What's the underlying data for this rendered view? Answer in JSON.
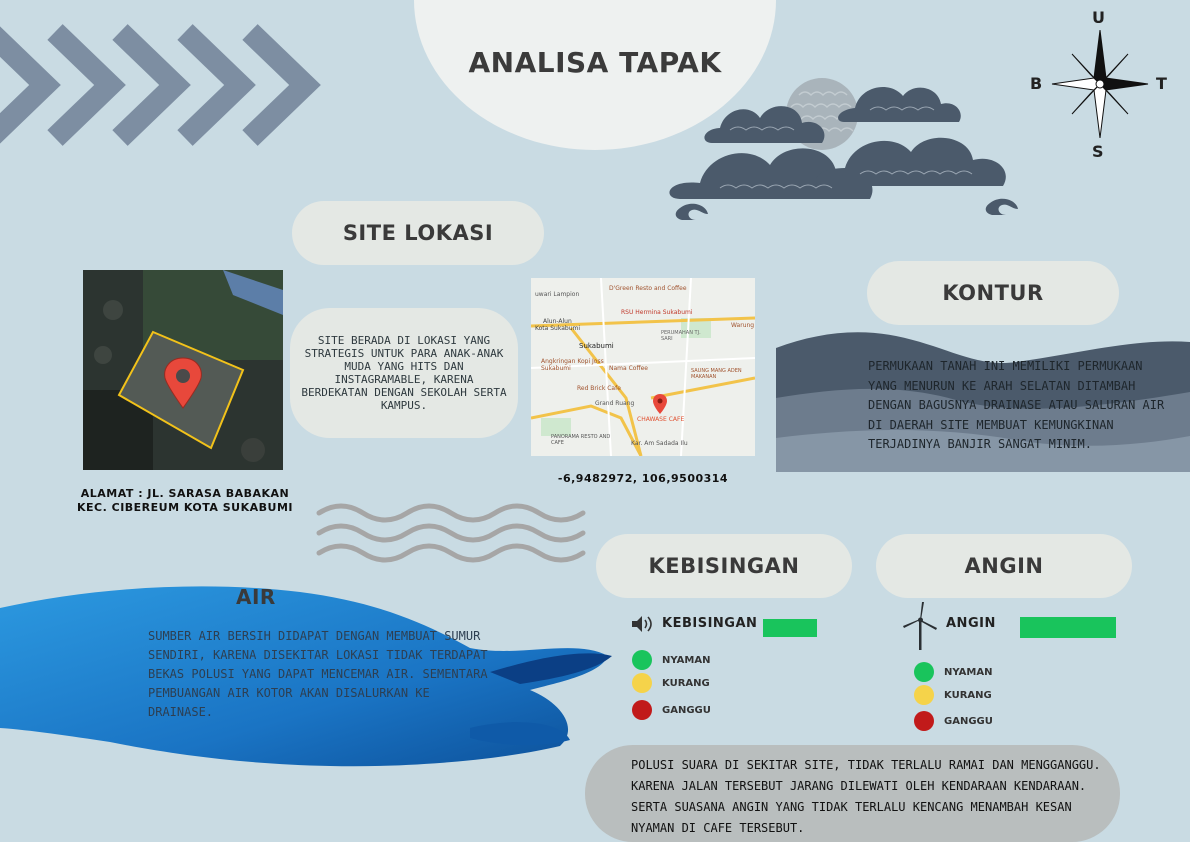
{
  "title": "ANALISA TAPAK",
  "compass": {
    "north": "U",
    "south": "S",
    "west": "B",
    "east": "T"
  },
  "site": {
    "heading": "SITE LOKASI",
    "description": "SITE BERADA DI LOKASI YANG STRATEGIS UNTUK PARA ANAK-ANAK MUDA YANG HITS DAN INSTAGRAMABLE, KARENA BERDEKATAN DENGAN SEKOLAH SERTA KAMPUS.",
    "address_line1": "ALAMAT : JL. SARASA BABAKAN",
    "address_line2": "KEC. CIBEREUM KOTA SUKABUMI",
    "coordinates": "-6,9482972, 106,9500314"
  },
  "map_labels": {
    "l1": "uwari Lampion",
    "l2": "D'Green Resto and Coffee",
    "l3": "RSU Hermina Sukabumi",
    "l4": "Alun-Alun",
    "l5": "Kota Sukabumi",
    "l6": "Sukabumi",
    "l7": "PERUMAHAN TJ. SARI",
    "l8": "Warung",
    "l9": "Angkringan Kopi Joss Sukabumi",
    "l10": "Nama Coffee",
    "l11": "SAUNG MANG ADEN MAKANAN",
    "l12": "Red Brick Cafe",
    "l13": "Grand Ruang",
    "l14": "CHAWASE CAFE",
    "l15": "PANORAMA RESTO AND CAFE",
    "l16": "Kar. Am Sadada Ilu"
  },
  "kontur": {
    "heading": "KONTUR",
    "text": "PERMUKAAN TANAH INI MEMILIKI PERMUKAAN YANG MENURUN KE ARAH SELATAN DITAMBAH DENGAN BAGUSNYA DRAINASE ATAU SALURAN AIR DI DAERAH SITE MEMBUAT KEMUNGKINAN TERJADINYA BANJIR SANGAT MINIM."
  },
  "air": {
    "heading": "AIR",
    "text": "SUMBER AIR BERSIH DIDAPAT DENGAN MEMBUAT SUMUR SENDIRI, KARENA DISEKITAR LOKASI TIDAK TERDAPAT BEKAS POLUSI YANG DAPAT MENCEMAR AIR. SEMENTARA PEMBUANGAN AIR KOTOR AKAN DISALURKAN KE DRAINASE."
  },
  "kebisingan": {
    "heading": "KEBISINGAN",
    "label": "KEBISINGAN",
    "legend": {
      "nyaman": "NYAMAN",
      "kurang": "KURANG",
      "ganggu": "GANGGU"
    },
    "text": "POLUSI SUARA DI SEKITAR SITE, TIDAK TERLALU RAMAI DAN MENGGANGGU. KARENA JALAN TERSEBUT JARANG DILEWATI OLEH KENDARAAN KENDARAAN. SERTA SUASANA ANGIN YANG TIDAK TERLALU KENCANG MENAMBAH KESAN NYAMAN DI CAFE TERSEBUT."
  },
  "angin": {
    "heading": "ANGIN",
    "label": "ANGIN",
    "legend": {
      "nyaman": "NYAMAN",
      "kurang": "KURANG",
      "ganggu": "GANGGU"
    }
  },
  "colors": {
    "background": "#c9dbe3",
    "pill": "#e4e8e4",
    "nyaman": "#19c45c",
    "kurang": "#f5d34a",
    "ganggu": "#c11a1a",
    "water": "#1f7fd0",
    "wave_dark": "#4b5a6b",
    "cloud": "#4b5a6b"
  },
  "icons": {
    "chevrons": "chevron-right-icon",
    "compass": "compass-rose-icon",
    "cloud": "cloud-icon",
    "moon": "moon-icon",
    "pin": "map-pin-icon",
    "speaker": "speaker-icon",
    "wind": "wind-turbine-icon"
  }
}
